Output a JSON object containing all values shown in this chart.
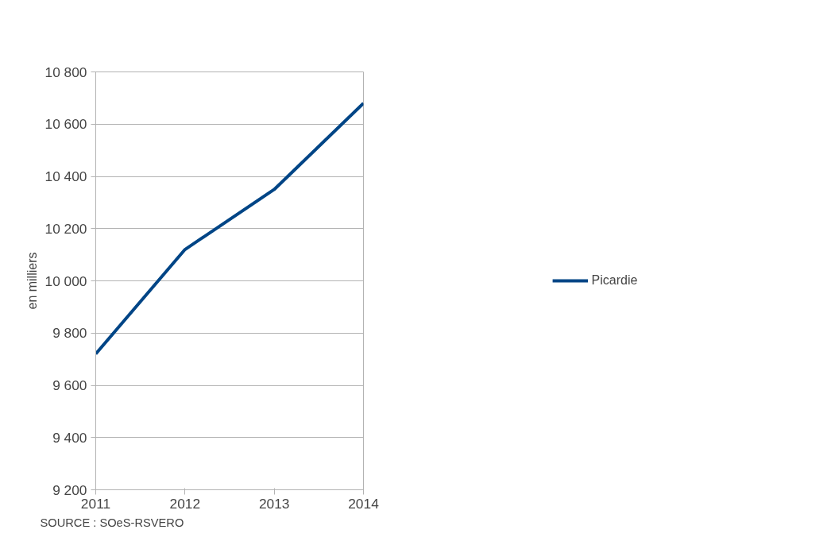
{
  "chart_data": {
    "type": "line",
    "ylabel": "en milliers",
    "annotations": [
      "SOURCE : SOeS-RSVERO"
    ],
    "x": [
      2011,
      2012,
      2013,
      2014
    ],
    "series": [
      {
        "name": "Picardie",
        "color": "#004586",
        "values": [
          9720,
          10120,
          10350,
          10680
        ]
      }
    ],
    "xlim": [
      2011,
      2014
    ],
    "xticks": [
      2011,
      2012,
      2013,
      2014
    ],
    "ylim": [
      9200,
      10800
    ],
    "yticks": [
      {
        "value": 9200,
        "label": "9 200"
      },
      {
        "value": 9400,
        "label": "9 400"
      },
      {
        "value": 9600,
        "label": "9 600"
      },
      {
        "value": 9800,
        "label": "9 800"
      },
      {
        "value": 10000,
        "label": "10 000"
      },
      {
        "value": 10200,
        "label": "10 200"
      },
      {
        "value": 10400,
        "label": "10 400"
      },
      {
        "value": 10600,
        "label": "10 600"
      },
      {
        "value": 10800,
        "label": "10 800"
      }
    ],
    "grid": "y",
    "legend": "right",
    "marker": "none",
    "line_style": "solid"
  }
}
